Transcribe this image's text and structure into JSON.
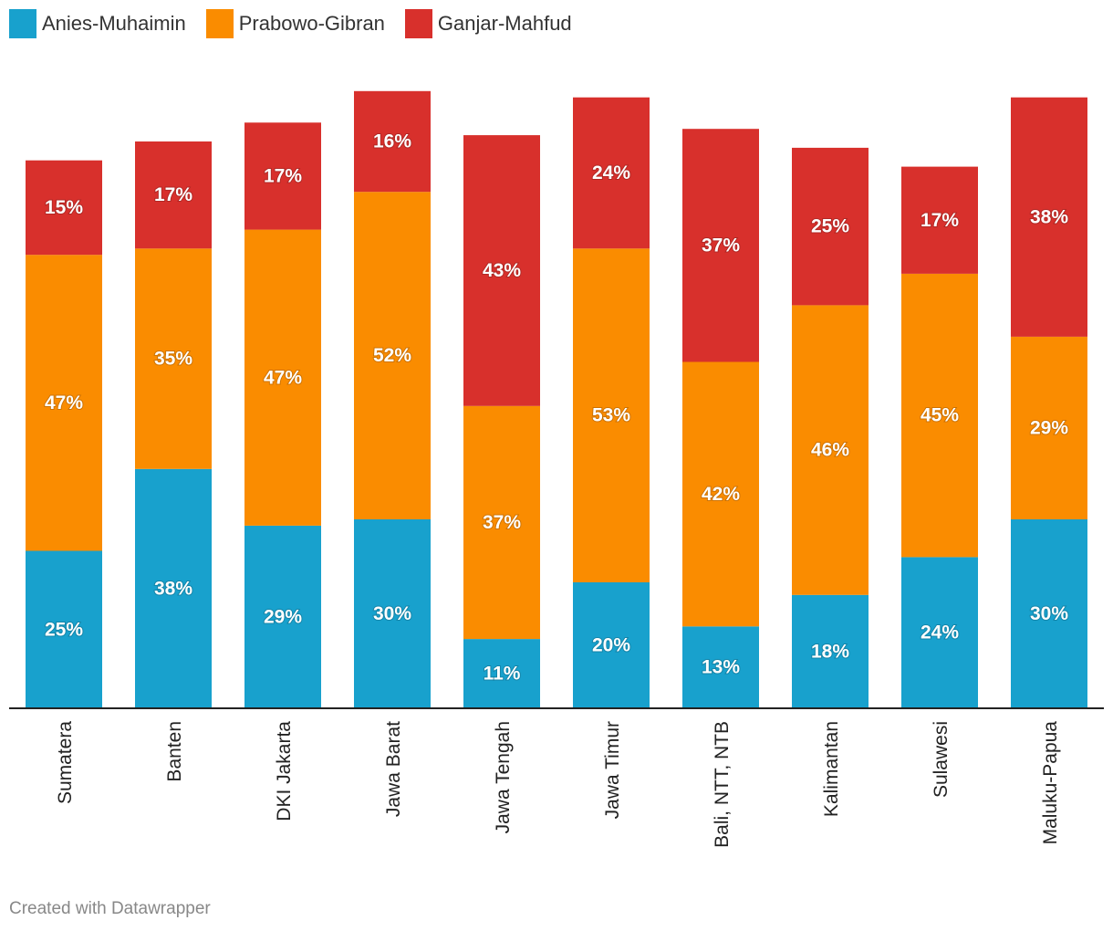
{
  "chart_data": {
    "type": "bar",
    "stacked": true,
    "categories": [
      "Sumatera",
      "Banten",
      "DKI Jakarta",
      "Jawa Barat",
      "Jawa Tengah",
      "Jawa Timur",
      "Bali, NTT, NTB",
      "Kalimantan",
      "Sulawesi",
      "Maluku-Papua"
    ],
    "series": [
      {
        "name": "Anies-Muhaimin",
        "color": "#18a1cd",
        "values": [
          25,
          38,
          29,
          30,
          11,
          20,
          13,
          18,
          24,
          30
        ]
      },
      {
        "name": "Prabowo-Gibran",
        "color": "#fa8c00",
        "values": [
          47,
          35,
          47,
          52,
          37,
          53,
          42,
          46,
          45,
          29
        ]
      },
      {
        "name": "Ganjar-Mahfud",
        "color": "#d8302c",
        "values": [
          15,
          17,
          17,
          16,
          43,
          24,
          37,
          25,
          17,
          38
        ]
      }
    ],
    "title": "",
    "xlabel": "",
    "ylabel": "",
    "ylim": [
      0,
      100
    ],
    "value_suffix": "%",
    "legend_position": "top-left",
    "grid": false
  },
  "legend": {
    "items": [
      {
        "label": "Anies-Muhaimin",
        "color": "#18a1cd"
      },
      {
        "label": "Prabowo-Gibran",
        "color": "#fa8c00"
      },
      {
        "label": "Ganjar-Mahfud",
        "color": "#d8302c"
      }
    ]
  },
  "credit": "Created with Datawrapper"
}
